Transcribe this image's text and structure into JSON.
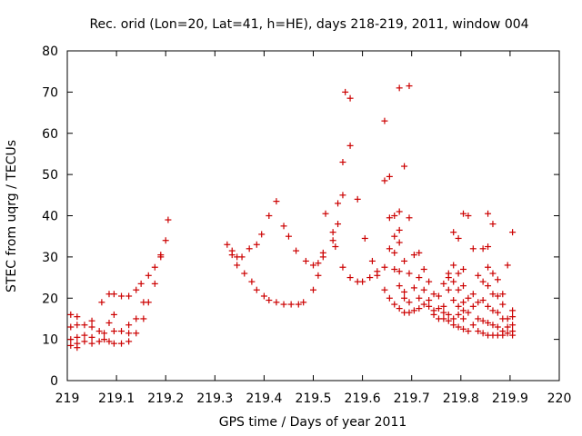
{
  "chart_data": {
    "type": "scatter",
    "title": "Rec. orid (Lon=20, Lat=41, h=HE), days 218-219, 2011, window 004",
    "xlabel": "GPS time / Days of year 2011",
    "ylabel": "STEC from uqrg / TECUs",
    "xlim": [
      219,
      220
    ],
    "ylim": [
      0,
      80
    ],
    "x_ticks": [
      "219",
      "219.1",
      "219.2",
      "219.3",
      "219.4",
      "219.5",
      "219.6",
      "219.7",
      "219.8",
      "219.9",
      "220"
    ],
    "y_ticks": [
      "0",
      "10",
      "20",
      "30",
      "40",
      "50",
      "60",
      "70",
      "80"
    ],
    "x_tick_values": [
      219,
      219.1,
      219.2,
      219.3,
      219.4,
      219.5,
      219.6,
      219.7,
      219.8,
      219.9,
      220
    ],
    "y_tick_values": [
      0,
      10,
      20,
      30,
      40,
      50,
      60,
      70,
      80
    ],
    "marker": "plus",
    "color": "#cc0000",
    "grid": false,
    "points": [
      [
        219.007,
        16
      ],
      [
        219.007,
        13
      ],
      [
        219.007,
        10
      ],
      [
        219.007,
        8.5
      ],
      [
        219.02,
        15.5
      ],
      [
        219.02,
        13.5
      ],
      [
        219.02,
        10.5
      ],
      [
        219.02,
        9
      ],
      [
        219.02,
        8
      ],
      [
        219.035,
        13.5
      ],
      [
        219.035,
        11
      ],
      [
        219.035,
        9.5
      ],
      [
        219.05,
        14.5
      ],
      [
        219.05,
        13
      ],
      [
        219.05,
        10.5
      ],
      [
        219.05,
        9
      ],
      [
        219.065,
        12
      ],
      [
        219.065,
        9.5
      ],
      [
        219.07,
        19
      ],
      [
        219.075,
        11.5
      ],
      [
        219.075,
        10
      ],
      [
        219.085,
        21
      ],
      [
        219.085,
        14
      ],
      [
        219.085,
        9.5
      ],
      [
        219.095,
        21
      ],
      [
        219.095,
        16
      ],
      [
        219.095,
        12
      ],
      [
        219.095,
        9
      ],
      [
        219.11,
        20.5
      ],
      [
        219.11,
        12
      ],
      [
        219.11,
        9
      ],
      [
        219.125,
        13.5
      ],
      [
        219.125,
        11.5
      ],
      [
        219.125,
        9.5
      ],
      [
        219.125,
        20.5
      ],
      [
        219.14,
        22
      ],
      [
        219.14,
        15
      ],
      [
        219.14,
        11.5
      ],
      [
        219.15,
        23.5
      ],
      [
        219.155,
        19
      ],
      [
        219.155,
        15
      ],
      [
        219.165,
        25.5
      ],
      [
        219.165,
        19
      ],
      [
        219.178,
        27.5
      ],
      [
        219.178,
        23.5
      ],
      [
        219.19,
        30
      ],
      [
        219.19,
        30.5
      ],
      [
        219.2,
        34
      ],
      [
        219.205,
        39
      ],
      [
        219.325,
        33
      ],
      [
        219.335,
        31.5
      ],
      [
        219.335,
        30.5
      ],
      [
        219.345,
        30
      ],
      [
        219.345,
        28
      ],
      [
        219.355,
        30
      ],
      [
        219.36,
        26
      ],
      [
        219.37,
        32
      ],
      [
        219.375,
        24
      ],
      [
        219.385,
        33
      ],
      [
        219.385,
        22
      ],
      [
        219.395,
        35.5
      ],
      [
        219.4,
        20.5
      ],
      [
        219.41,
        40
      ],
      [
        219.41,
        19.5
      ],
      [
        219.425,
        43.5
      ],
      [
        219.425,
        19
      ],
      [
        219.44,
        37.5
      ],
      [
        219.44,
        18.5
      ],
      [
        219.45,
        35
      ],
      [
        219.455,
        18.5
      ],
      [
        219.465,
        31.5
      ],
      [
        219.47,
        18.5
      ],
      [
        219.48,
        19
      ],
      [
        219.485,
        29
      ],
      [
        219.5,
        22
      ],
      [
        219.5,
        28
      ],
      [
        219.51,
        25.5
      ],
      [
        219.51,
        28.5
      ],
      [
        219.52,
        30
      ],
      [
        219.52,
        31
      ],
      [
        219.525,
        40.5
      ],
      [
        219.54,
        34
      ],
      [
        219.54,
        36
      ],
      [
        219.545,
        32.5
      ],
      [
        219.55,
        38
      ],
      [
        219.55,
        43
      ],
      [
        219.56,
        53
      ],
      [
        219.56,
        45
      ],
      [
        219.56,
        27.5
      ],
      [
        219.565,
        70
      ],
      [
        219.575,
        68.5
      ],
      [
        219.575,
        57
      ],
      [
        219.575,
        25
      ],
      [
        219.59,
        44
      ],
      [
        219.59,
        24
      ],
      [
        219.6,
        24
      ],
      [
        219.605,
        34.5
      ],
      [
        219.615,
        25
      ],
      [
        219.62,
        29
      ],
      [
        219.63,
        25.5
      ],
      [
        219.63,
        26.5
      ],
      [
        219.645,
        63
      ],
      [
        219.645,
        48.5
      ],
      [
        219.645,
        27.5
      ],
      [
        219.645,
        22
      ],
      [
        219.655,
        49.5
      ],
      [
        219.655,
        39.5
      ],
      [
        219.655,
        32
      ],
      [
        219.655,
        20
      ],
      [
        219.665,
        40
      ],
      [
        219.665,
        35
      ],
      [
        219.665,
        31
      ],
      [
        219.665,
        27
      ],
      [
        219.665,
        18.5
      ],
      [
        219.675,
        71
      ],
      [
        219.675,
        41
      ],
      [
        219.675,
        36.5
      ],
      [
        219.675,
        33.5
      ],
      [
        219.675,
        26.5
      ],
      [
        219.675,
        23
      ],
      [
        219.675,
        17.5
      ],
      [
        219.685,
        52
      ],
      [
        219.685,
        29
      ],
      [
        219.685,
        21.5
      ],
      [
        219.685,
        20
      ],
      [
        219.685,
        16.5
      ],
      [
        219.695,
        71.5
      ],
      [
        219.695,
        39.5
      ],
      [
        219.695,
        26
      ],
      [
        219.695,
        19
      ],
      [
        219.695,
        16.5
      ],
      [
        219.705,
        30.5
      ],
      [
        219.705,
        22.5
      ],
      [
        219.705,
        17
      ],
      [
        219.715,
        31
      ],
      [
        219.715,
        25
      ],
      [
        219.715,
        20
      ],
      [
        219.715,
        17.5
      ],
      [
        219.725,
        27
      ],
      [
        219.725,
        22
      ],
      [
        219.725,
        18.5
      ],
      [
        219.735,
        24
      ],
      [
        219.735,
        19.5
      ],
      [
        219.735,
        18
      ],
      [
        219.745,
        21
      ],
      [
        219.745,
        17
      ],
      [
        219.745,
        16
      ],
      [
        219.755,
        20.5
      ],
      [
        219.755,
        17.5
      ],
      [
        219.755,
        15
      ],
      [
        219.765,
        23.5
      ],
      [
        219.765,
        18
      ],
      [
        219.765,
        16.5
      ],
      [
        219.765,
        15
      ],
      [
        219.775,
        26
      ],
      [
        219.775,
        25
      ],
      [
        219.775,
        22
      ],
      [
        219.775,
        16
      ],
      [
        219.775,
        14.5
      ],
      [
        219.785,
        36
      ],
      [
        219.785,
        28
      ],
      [
        219.785,
        24
      ],
      [
        219.785,
        19.5
      ],
      [
        219.785,
        15
      ],
      [
        219.785,
        13.5
      ],
      [
        219.795,
        34.5
      ],
      [
        219.795,
        26
      ],
      [
        219.795,
        22
      ],
      [
        219.795,
        18
      ],
      [
        219.795,
        16
      ],
      [
        219.795,
        13
      ],
      [
        219.805,
        40.5
      ],
      [
        219.805,
        27
      ],
      [
        219.805,
        23
      ],
      [
        219.805,
        19
      ],
      [
        219.805,
        17
      ],
      [
        219.805,
        15
      ],
      [
        219.805,
        12.5
      ],
      [
        219.815,
        40
      ],
      [
        219.815,
        20
      ],
      [
        219.815,
        16.5
      ],
      [
        219.815,
        12
      ],
      [
        219.825,
        32
      ],
      [
        219.825,
        21
      ],
      [
        219.825,
        18
      ],
      [
        219.825,
        13.5
      ],
      [
        219.835,
        25.5
      ],
      [
        219.835,
        19
      ],
      [
        219.835,
        15
      ],
      [
        219.835,
        12
      ],
      [
        219.845,
        32
      ],
      [
        219.845,
        24
      ],
      [
        219.845,
        19.5
      ],
      [
        219.845,
        14.5
      ],
      [
        219.845,
        11.5
      ],
      [
        219.855,
        40.5
      ],
      [
        219.855,
        32.5
      ],
      [
        219.855,
        27.5
      ],
      [
        219.855,
        23
      ],
      [
        219.855,
        18
      ],
      [
        219.855,
        14
      ],
      [
        219.855,
        11
      ],
      [
        219.865,
        38
      ],
      [
        219.865,
        26
      ],
      [
        219.865,
        21
      ],
      [
        219.865,
        17
      ],
      [
        219.865,
        13.5
      ],
      [
        219.865,
        11
      ],
      [
        219.875,
        24.5
      ],
      [
        219.875,
        20.5
      ],
      [
        219.875,
        16.5
      ],
      [
        219.875,
        13
      ],
      [
        219.875,
        11
      ],
      [
        219.885,
        21
      ],
      [
        219.885,
        18.5
      ],
      [
        219.885,
        15
      ],
      [
        219.885,
        12
      ],
      [
        219.885,
        11
      ],
      [
        219.895,
        28
      ],
      [
        219.895,
        15
      ],
      [
        219.895,
        13
      ],
      [
        219.895,
        11.5
      ],
      [
        219.905,
        36
      ],
      [
        219.905,
        17
      ],
      [
        219.905,
        15.5
      ],
      [
        219.905,
        13.5
      ],
      [
        219.905,
        12
      ],
      [
        219.905,
        11
      ]
    ]
  }
}
